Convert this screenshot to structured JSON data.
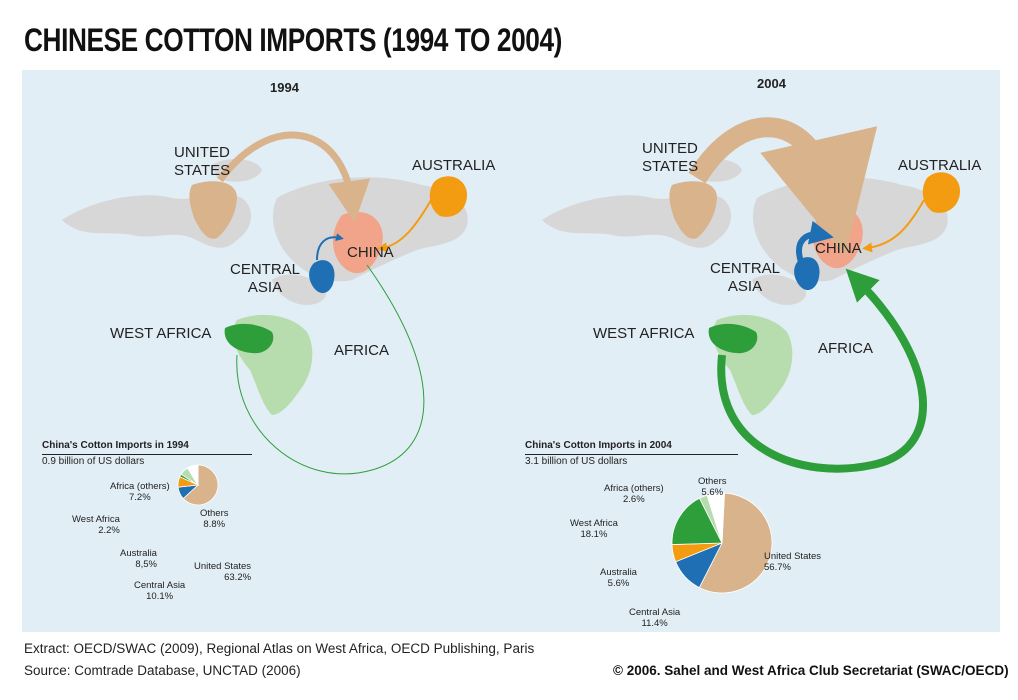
{
  "title": "CHINESE COTTON IMPORTS (1994 TO 2004)",
  "colors": {
    "united_states": "#d9b38c",
    "australia": "#f39c12",
    "central_asia": "#1f6fb5",
    "west_africa": "#2e9e3a",
    "africa_others": "#b7dcae",
    "china": "#f2a48a",
    "land": "#d7d7d7",
    "sea": "#e2eef5"
  },
  "map_1994": {
    "year": "1994",
    "labels": {
      "united_states": "UNITED\nSTATES",
      "australia": "AUSTRALIA",
      "china": "CHINA",
      "central_asia": "CENTRAL\nASIA",
      "west_africa": "WEST AFRICA",
      "africa": "AFRICA"
    }
  },
  "map_2004": {
    "year": "2004",
    "labels": {
      "united_states": "UNITED\nSTATES",
      "australia": "AUSTRALIA",
      "china": "CHINA",
      "central_asia": "CENTRAL\nASIA",
      "west_africa": "WEST AFRICA",
      "africa": "AFRICA"
    }
  },
  "chart_data": [
    {
      "type": "pie",
      "title": "China's Cotton Imports in 1994",
      "subtitle": "0.9 billion of US dollars",
      "total_billion_usd": 0.9,
      "slices": [
        {
          "label": "United States",
          "value": 63.2,
          "display": "63.2%",
          "color": "#d9b38c"
        },
        {
          "label": "Central Asia",
          "value": 10.1,
          "display": "10.1%",
          "color": "#1f6fb5"
        },
        {
          "label": "Australia",
          "value": 8.5,
          "display": "8,5%",
          "color": "#f39c12"
        },
        {
          "label": "West Africa",
          "value": 2.2,
          "display": "2.2%",
          "color": "#2e9e3a"
        },
        {
          "label": "Africa (others)",
          "value": 7.2,
          "display": "7.2%",
          "color": "#b7dcae"
        },
        {
          "label": "Others",
          "value": 8.8,
          "display": "8.8%",
          "color": "#ffffff"
        }
      ]
    },
    {
      "type": "pie",
      "title": "China's Cotton Imports in 2004",
      "subtitle": "3.1 billion of US dollars",
      "total_billion_usd": 3.1,
      "slices": [
        {
          "label": "United States",
          "value": 56.7,
          "display": "56.7%",
          "color": "#d9b38c"
        },
        {
          "label": "Central Asia",
          "value": 11.4,
          "display": "11.4%",
          "color": "#1f6fb5"
        },
        {
          "label": "Australia",
          "value": 5.6,
          "display": "5.6%",
          "color": "#f39c12"
        },
        {
          "label": "West Africa",
          "value": 18.1,
          "display": "18.1%",
          "color": "#2e9e3a"
        },
        {
          "label": "Africa (others)",
          "value": 2.6,
          "display": "2.6%",
          "color": "#b7dcae"
        },
        {
          "label": "Others",
          "value": 5.6,
          "display": "5.6%",
          "color": "#ffffff"
        }
      ]
    }
  ],
  "footer": {
    "extract": "Extract: OECD/SWAC (2009), Regional Atlas on West Africa, OECD Publishing, Paris",
    "source": "Source: Comtrade Database, UNCTAD (2006)",
    "copyright": "© 2006. Sahel and West Africa Club Secretariat (SWAC/OECD)"
  }
}
